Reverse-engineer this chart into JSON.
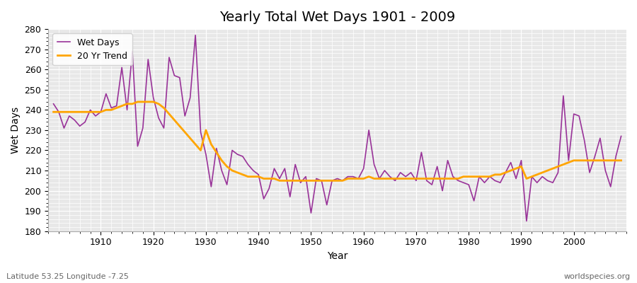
{
  "title": "Yearly Total Wet Days 1901 - 2009",
  "xlabel": "Year",
  "ylabel": "Wet Days",
  "bottom_left_label": "Latitude 53.25 Longitude -7.25",
  "bottom_right_label": "worldspecies.org",
  "ylim": [
    180,
    280
  ],
  "yticks": [
    180,
    190,
    200,
    210,
    220,
    230,
    240,
    250,
    260,
    270,
    280
  ],
  "wet_days_color": "#993399",
  "trend_color": "#ffa500",
  "plot_bg_color": "#e8e8e8",
  "fig_bg_color": "#ffffff",
  "legend_labels": [
    "Wet Days",
    "20 Yr Trend"
  ],
  "legend_loc": "upper left",
  "years": [
    1901,
    1902,
    1903,
    1904,
    1905,
    1906,
    1907,
    1908,
    1909,
    1910,
    1911,
    1912,
    1913,
    1914,
    1915,
    1916,
    1917,
    1918,
    1919,
    1920,
    1921,
    1922,
    1923,
    1924,
    1925,
    1926,
    1927,
    1928,
    1929,
    1930,
    1931,
    1932,
    1933,
    1934,
    1935,
    1936,
    1937,
    1938,
    1939,
    1940,
    1941,
    1942,
    1943,
    1944,
    1945,
    1946,
    1947,
    1948,
    1949,
    1950,
    1951,
    1952,
    1953,
    1954,
    1955,
    1956,
    1957,
    1958,
    1959,
    1960,
    1961,
    1962,
    1963,
    1964,
    1965,
    1966,
    1967,
    1968,
    1969,
    1970,
    1971,
    1972,
    1973,
    1974,
    1975,
    1976,
    1977,
    1978,
    1979,
    1980,
    1981,
    1982,
    1983,
    1984,
    1985,
    1986,
    1987,
    1988,
    1989,
    1990,
    1991,
    1992,
    1993,
    1994,
    1995,
    1996,
    1997,
    1998,
    1999,
    2000,
    2001,
    2002,
    2003,
    2004,
    2005,
    2006,
    2007,
    2008,
    2009
  ],
  "wet_days": [
    243,
    239,
    231,
    237,
    235,
    232,
    234,
    240,
    237,
    239,
    248,
    241,
    242,
    261,
    240,
    269,
    222,
    231,
    265,
    246,
    236,
    231,
    266,
    257,
    256,
    237,
    246,
    277,
    229,
    218,
    202,
    221,
    210,
    203,
    220,
    218,
    217,
    213,
    210,
    208,
    196,
    201,
    211,
    206,
    211,
    197,
    213,
    204,
    207,
    189,
    206,
    205,
    193,
    205,
    206,
    205,
    207,
    207,
    206,
    211,
    230,
    213,
    206,
    210,
    207,
    205,
    209,
    207,
    209,
    205,
    219,
    205,
    203,
    212,
    200,
    215,
    207,
    205,
    204,
    203,
    195,
    207,
    204,
    207,
    205,
    204,
    209,
    214,
    206,
    215,
    185,
    207,
    204,
    207,
    205,
    204,
    209,
    247,
    215,
    238,
    237,
    225,
    209,
    217,
    226,
    210,
    202,
    217,
    227
  ],
  "trend_values": [
    239,
    239,
    239,
    239,
    239,
    239,
    239,
    239,
    239,
    239,
    240,
    240,
    241,
    242,
    243,
    243,
    244,
    244,
    244,
    244,
    243,
    241,
    238,
    235,
    232,
    229,
    226,
    223,
    220,
    230,
    223,
    219,
    215,
    212,
    210,
    209,
    208,
    207,
    207,
    207,
    206,
    206,
    206,
    205,
    205,
    205,
    205,
    205,
    205,
    205,
    205,
    205,
    205,
    205,
    205,
    205,
    206,
    206,
    206,
    206,
    207,
    206,
    206,
    206,
    206,
    206,
    206,
    206,
    206,
    206,
    206,
    206,
    206,
    206,
    206,
    206,
    206,
    206,
    207,
    207,
    207,
    207,
    207,
    207,
    208,
    208,
    209,
    210,
    211,
    212,
    206,
    207,
    208,
    209,
    210,
    211,
    212,
    213,
    214,
    215,
    215,
    215,
    215,
    215,
    215,
    215,
    215,
    215,
    215
  ]
}
